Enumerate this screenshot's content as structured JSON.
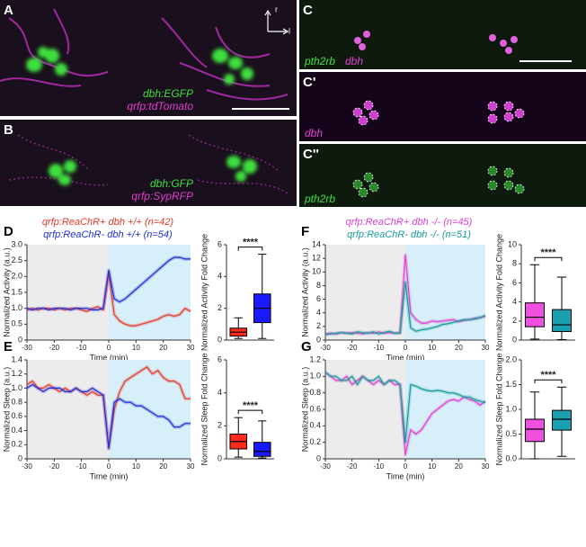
{
  "images": [
    {
      "panel": "A",
      "labels": [
        "dbh:EGFP",
        "qrfp:tdTomato"
      ],
      "orientation": [
        "r",
        "l"
      ]
    },
    {
      "panel": "B",
      "labels": [
        "dbh:GFP",
        "qrfp:SypRFP"
      ]
    },
    {
      "panel": "C",
      "labels": [
        "pth2rb",
        "dbh"
      ]
    },
    {
      "panel": "C'",
      "labels": [
        "dbh"
      ]
    },
    {
      "panel": "C''",
      "labels": [
        "pth2rb"
      ]
    }
  ],
  "chart_data": [
    {
      "type": "line",
      "panel": "D",
      "ylabel": "Normalized Activity (a.u.)",
      "xlabel": "Time (min)",
      "x": [
        -30,
        -28,
        -26,
        -24,
        -22,
        -20,
        -18,
        -16,
        -14,
        -12,
        -10,
        -8,
        -6,
        -4,
        -2,
        0,
        2,
        4,
        6,
        8,
        10,
        12,
        14,
        16,
        18,
        20,
        22,
        24,
        26,
        28,
        30
      ],
      "series": [
        {
          "name": "qrfp:ReaChR+ dbh +/+ (n=42)",
          "color": "#e8392b",
          "values": [
            0.95,
            1.0,
            0.95,
            1.0,
            1.0,
            0.95,
            1.0,
            0.95,
            1.0,
            1.0,
            0.95,
            0.9,
            1.0,
            1.05,
            0.95,
            2.1,
            0.8,
            0.6,
            0.5,
            0.45,
            0.45,
            0.5,
            0.55,
            0.6,
            0.65,
            0.75,
            0.8,
            0.75,
            0.8,
            1.0,
            0.9
          ]
        },
        {
          "name": "qrfp:ReaChR- dbh +/+ (n=54)",
          "color": "#1f2ed8",
          "values": [
            1.0,
            0.95,
            1.0,
            1.0,
            0.95,
            1.0,
            1.0,
            1.0,
            0.95,
            1.0,
            1.0,
            1.0,
            0.95,
            0.95,
            1.0,
            2.2,
            1.3,
            1.2,
            1.3,
            1.45,
            1.6,
            1.75,
            1.9,
            2.05,
            2.2,
            2.35,
            2.5,
            2.6,
            2.6,
            2.55,
            2.55
          ]
        }
      ],
      "xlim": [
        -30,
        30
      ],
      "xticks": [
        -30,
        -20,
        -10,
        0,
        10,
        20,
        30
      ],
      "ylim": [
        0,
        3
      ],
      "yticks": [
        0,
        0.5,
        {
          "value": 1,
          "label": "1.0"
        },
        1.5,
        {
          "value": 2,
          "label": "2.0"
        },
        2.5,
        {
          "value": 3,
          "label": "3.0"
        }
      ]
    },
    {
      "type": "box",
      "ylabel": "Normalized Activity Fold Change",
      "annotation": "****",
      "boxes": [
        {
          "color": "#ff2a1a",
          "min": 0.1,
          "q1": 0.25,
          "median": 0.5,
          "q3": 0.75,
          "max": 1.4
        },
        {
          "color": "#1a1aff",
          "min": 0.1,
          "q1": 1.1,
          "median": 2.0,
          "q3": 2.9,
          "max": 5.4
        }
      ],
      "ylim": [
        0,
        6
      ],
      "yticks": [
        0,
        2,
        4,
        6
      ]
    },
    {
      "type": "line",
      "panel": "E",
      "ylabel": "Normalized Sleep (a.u.)",
      "xlabel": "Time (min)",
      "x": [
        -30,
        -28,
        -26,
        -24,
        -22,
        -20,
        -18,
        -16,
        -14,
        -12,
        -10,
        -8,
        -6,
        -4,
        -2,
        0,
        2,
        4,
        6,
        8,
        10,
        12,
        14,
        16,
        18,
        20,
        22,
        24,
        26,
        28,
        30
      ],
      "series": [
        {
          "color": "#e8392b",
          "values": [
            1.05,
            1.1,
            1.0,
            1.0,
            1.05,
            1.0,
            0.95,
            1.0,
            0.95,
            1.0,
            0.95,
            0.9,
            0.95,
            0.9,
            0.9,
            0.15,
            0.7,
            0.95,
            1.1,
            1.15,
            1.2,
            1.25,
            1.3,
            1.2,
            1.25,
            1.15,
            1.1,
            1.1,
            1.05,
            0.85,
            0.85
          ]
        },
        {
          "color": "#1f2ed8",
          "values": [
            1.0,
            1.05,
            1.0,
            0.95,
            1.0,
            1.0,
            1.0,
            0.95,
            0.95,
            1.0,
            0.95,
            0.95,
            1.0,
            0.95,
            0.9,
            0.15,
            0.8,
            0.85,
            0.8,
            0.8,
            0.75,
            0.75,
            0.7,
            0.65,
            0.6,
            0.6,
            0.55,
            0.45,
            0.45,
            0.5,
            0.5
          ]
        }
      ],
      "xlim": [
        -30,
        30
      ],
      "xticks": [
        -30,
        -20,
        -10,
        0,
        10,
        20,
        30
      ],
      "ylim": [
        0,
        1.4
      ],
      "yticks": [
        0,
        0.2,
        0.4,
        0.6,
        0.8,
        {
          "value": 1,
          "label": "1.0"
        },
        1.2,
        1.4
      ]
    },
    {
      "type": "box",
      "ylabel": "Normalized Sleep Fold Change",
      "annotation": "****",
      "boxes": [
        {
          "color": "#ff2a1a",
          "min": 0.1,
          "q1": 0.6,
          "median": 1.05,
          "q3": 1.5,
          "max": 2.5
        },
        {
          "color": "#1a1aff",
          "min": 0.05,
          "q1": 0.15,
          "median": 0.45,
          "q3": 1.0,
          "max": 2.3
        }
      ],
      "ylim": [
        0,
        6
      ],
      "yticks": [
        0,
        2,
        4,
        6
      ]
    },
    {
      "type": "line",
      "panel": "F",
      "ylabel": "Normalized Activity (a.u.)",
      "xlabel": "Time (min)",
      "x": [
        -30,
        -28,
        -26,
        -24,
        -22,
        -20,
        -18,
        -16,
        -14,
        -12,
        -10,
        -8,
        -6,
        -4,
        -2,
        0,
        2,
        4,
        6,
        8,
        10,
        12,
        14,
        16,
        18,
        20,
        22,
        24,
        26,
        28,
        30
      ],
      "series": [
        {
          "name": "qrfp:ReaChR+ dbh -/- (n=45)",
          "color": "#e040d0",
          "values": [
            0.9,
            1.0,
            0.9,
            1.1,
            1.0,
            1.1,
            1.0,
            0.9,
            1.1,
            1.0,
            1.2,
            1.0,
            1.1,
            1.0,
            1.1,
            12.5,
            4.0,
            3.0,
            2.5,
            2.5,
            2.8,
            2.7,
            2.8,
            2.9,
            3.0,
            2.7,
            2.9,
            3.0,
            3.2,
            3.3,
            3.5
          ]
        },
        {
          "name": "qrfp:ReaChR- dbh -/- (n=51)",
          "color": "#1a9a9a",
          "values": [
            0.8,
            0.9,
            1.0,
            1.1,
            1.0,
            0.9,
            1.2,
            1.1,
            1.0,
            1.2,
            0.9,
            1.1,
            1.3,
            1.0,
            1.0,
            8.5,
            1.8,
            1.3,
            1.5,
            1.6,
            1.8,
            2.0,
            2.3,
            2.4,
            2.6,
            2.8,
            3.0,
            3.0,
            3.1,
            3.3,
            3.6
          ]
        }
      ],
      "xlim": [
        -30,
        30
      ],
      "xticks": [
        -30,
        -20,
        -10,
        0,
        10,
        20,
        30
      ],
      "ylim": [
        0,
        14
      ],
      "yticks": [
        0,
        2,
        4,
        6,
        8,
        10,
        12,
        14
      ]
    },
    {
      "type": "box",
      "ylabel": "Normalized Activity Fold Change",
      "annotation": "****",
      "boxes": [
        {
          "color": "#f050e0",
          "min": 0.1,
          "q1": 1.4,
          "median": 2.4,
          "q3": 3.9,
          "max": 7.9
        },
        {
          "color": "#1aa0b0",
          "min": 0.05,
          "q1": 0.9,
          "median": 1.6,
          "q3": 3.2,
          "max": 6.6
        }
      ],
      "ylim": [
        0,
        10
      ],
      "yticks": [
        0,
        2,
        4,
        6,
        8,
        10
      ]
    },
    {
      "type": "line",
      "panel": "G",
      "ylabel": "Normalized Sleep (a.u.)",
      "xlabel": "Time (min)",
      "x": [
        -30,
        -28,
        -26,
        -24,
        -22,
        -20,
        -18,
        -16,
        -14,
        -12,
        -10,
        -8,
        -6,
        -4,
        -2,
        0,
        2,
        4,
        6,
        8,
        10,
        12,
        14,
        16,
        18,
        20,
        22,
        24,
        26,
        28,
        30
      ],
      "series": [
        {
          "color": "#e040d0",
          "values": [
            1.05,
            1.0,
            0.95,
            0.95,
            1.0,
            0.9,
            0.95,
            1.0,
            0.95,
            0.9,
            0.95,
            0.9,
            0.95,
            0.9,
            0.9,
            0.05,
            0.35,
            0.3,
            0.35,
            0.45,
            0.55,
            0.6,
            0.65,
            0.7,
            0.72,
            0.7,
            0.75,
            0.72,
            0.7,
            0.65,
            0.7
          ]
        },
        {
          "color": "#1a9a9a",
          "values": [
            1.05,
            1.0,
            1.0,
            0.95,
            0.95,
            1.0,
            0.9,
            1.0,
            0.95,
            0.95,
            1.0,
            0.9,
            0.95,
            0.95,
            0.9,
            0.2,
            0.9,
            0.88,
            0.85,
            0.83,
            0.82,
            0.83,
            0.82,
            0.8,
            0.8,
            0.78,
            0.75,
            0.75,
            0.72,
            0.7,
            0.68
          ]
        }
      ],
      "xlim": [
        -30,
        30
      ],
      "xticks": [
        -30,
        -20,
        -10,
        0,
        10,
        20,
        30
      ],
      "ylim": [
        0,
        1.2
      ],
      "yticks": [
        0,
        0.2,
        0.4,
        0.6,
        0.8,
        {
          "value": 1,
          "label": "1.0"
        },
        1.2
      ]
    },
    {
      "type": "box",
      "ylabel": "Normalized Sleep Fold Change",
      "annotation": "****",
      "boxes": [
        {
          "color": "#f050e0",
          "min": 0.0,
          "q1": 0.35,
          "median": 0.6,
          "q3": 0.8,
          "max": 1.35
        },
        {
          "color": "#1aa0b0",
          "min": 0.05,
          "q1": 0.58,
          "median": 0.8,
          "q3": 0.98,
          "max": 1.45
        }
      ],
      "ylim": [
        0,
        2
      ],
      "yticks": [
        {
          "value": 0,
          "label": "0.0"
        },
        0.5,
        {
          "value": 1,
          "label": "1.0"
        },
        1.5,
        {
          "value": 2,
          "label": "2.0"
        }
      ]
    }
  ]
}
